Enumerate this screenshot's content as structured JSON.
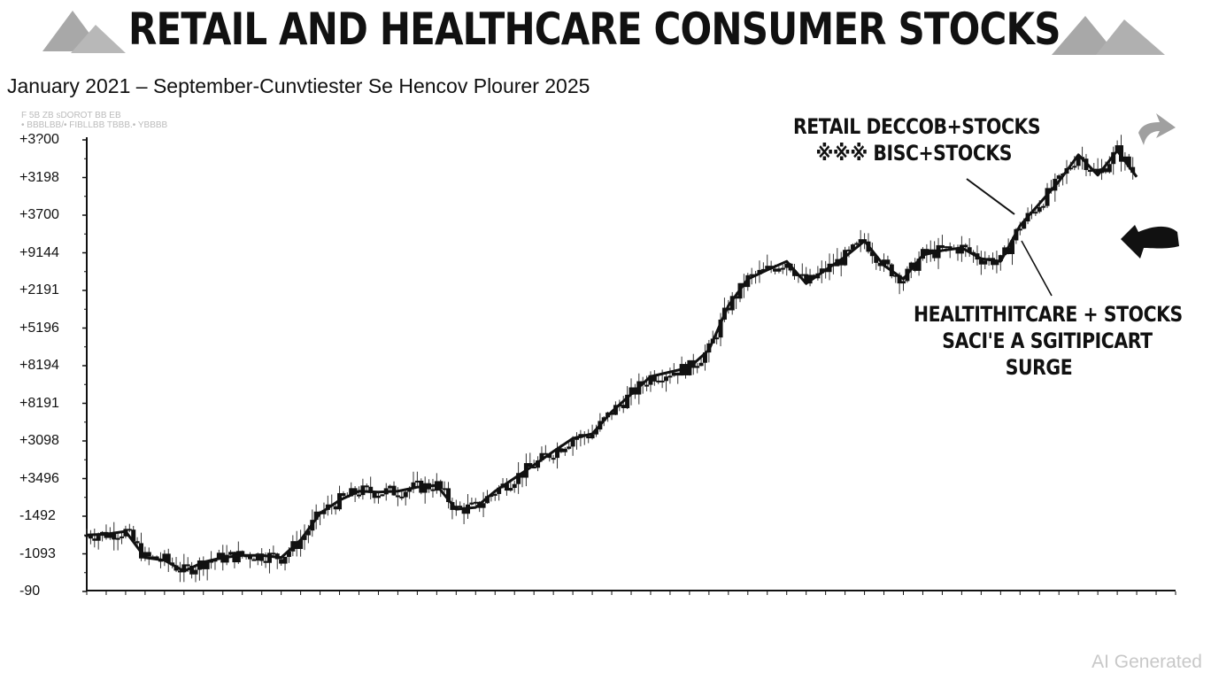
{
  "chart_data": {
    "type": "candlestick-line",
    "title": "RETAIL AND HEALTHCARE CONSUMER  STOCKS",
    "subtitle": "January 2021 – September-Cunvtiester Se Hencov Plourer 2025",
    "legend": [
      "F 5B ZB  sDOROT    BB      EB",
      "• BBBLBB/• FIBLLBB TBBB.• YBBBB"
    ],
    "y_tick_labels": [
      "+3?00",
      "+3198",
      "+3700",
      "+9144",
      "+2191",
      "+5196",
      "+8194",
      "+8191",
      "+3098",
      "+3496",
      "-1492",
      "-1093",
      "-90"
    ],
    "x_range": [
      "2021-01",
      "2025-09"
    ],
    "y_range_note": "relative level, 0 = bottom axis, 100 = top tick",
    "ylim": [
      0,
      100
    ],
    "grid": false,
    "series": [
      {
        "values": [
          12.5,
          12.7,
          13.3,
          7.5,
          6.9,
          4.5,
          6.5,
          7.5,
          8.0,
          8.0,
          7.5,
          11.4,
          17.3,
          20.2,
          22.2,
          22.0,
          22.2,
          23.1,
          23.5,
          18.2,
          18.6,
          22.2,
          25.1,
          28.0,
          31.0,
          33.9,
          34.9,
          39.8,
          43.7,
          47.6,
          48.6,
          49.6,
          53.5,
          63.3,
          69.2,
          71.2,
          73.1,
          68.2,
          71.2,
          74.1,
          77.6,
          72.2,
          69.2,
          74.5,
          75.5,
          76.1,
          73.7,
          73.1,
          81.0,
          85.9,
          90.8,
          96.7,
          92.2,
          97.6,
          91.8
        ],
        "start": "2021-01",
        "frequency": "monthly"
      }
    ],
    "annotations": [
      {
        "lines": [
          "RETAIL DECCOB+STOCKS",
          "※※※ BISC+STOCKS"
        ]
      },
      {
        "lines": [
          "HEALTITHITCARE + STOCKS",
          "SACI'E  A SGITIPICART",
          "SURGE"
        ]
      }
    ],
    "colors": {
      "candles": "#111111",
      "icons": "#a0a0a0"
    }
  },
  "watermark": "AI Generated",
  "icons": [
    "mountain-icon-left",
    "mountain-icon-right",
    "arrow-right-icon",
    "hand-pointer-icon"
  ]
}
